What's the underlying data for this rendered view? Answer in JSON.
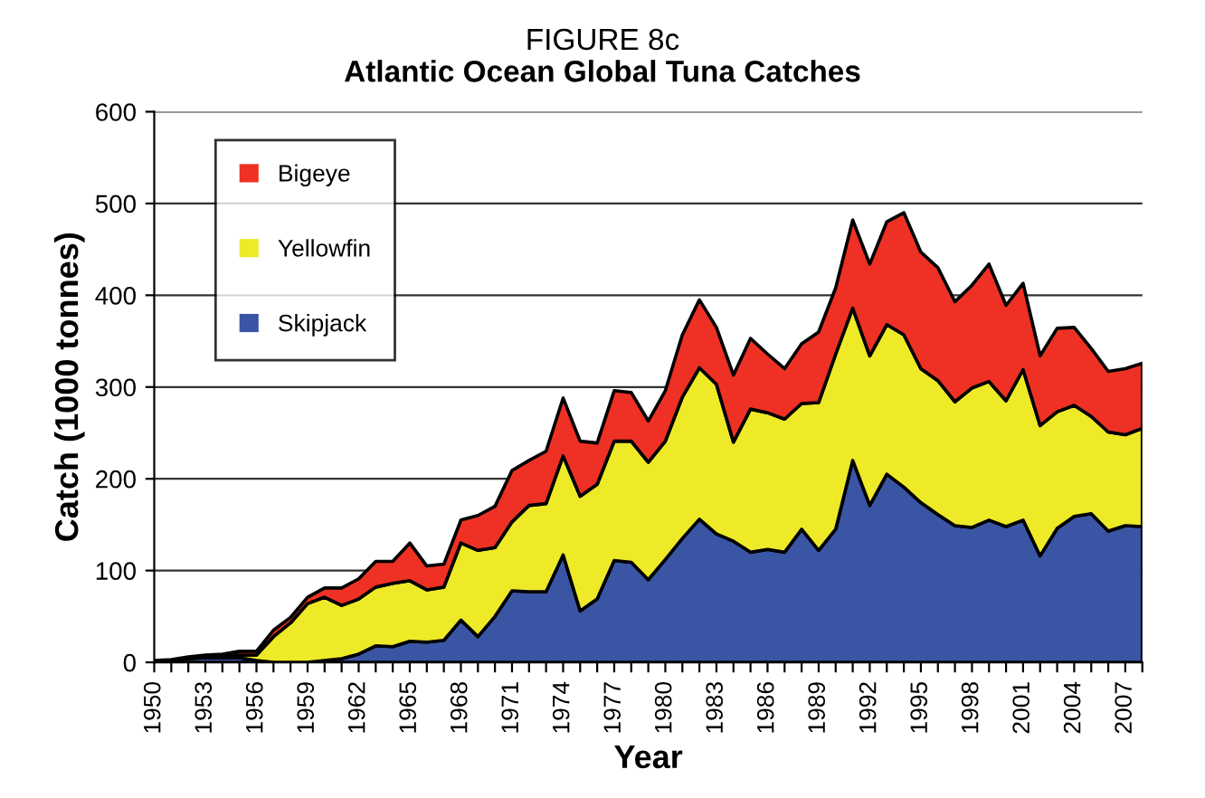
{
  "chart_data": {
    "type": "area",
    "stacked": true,
    "title": "FIGURE 8c",
    "subtitle": "Atlantic Ocean Global Tuna Catches",
    "xlabel": "Year",
    "ylabel": "Catch (1000 tonnes)",
    "categories": [
      "1950",
      null,
      null,
      "1953",
      null,
      null,
      "1956",
      null,
      null,
      "1959",
      null,
      null,
      "1962",
      null,
      null,
      "1965",
      null,
      null,
      "1968",
      null,
      null,
      "1971",
      null,
      null,
      "1974",
      null,
      null,
      "1977",
      null,
      null,
      "1980",
      null,
      null,
      "1983",
      null,
      null,
      "1986",
      null,
      null,
      "1989",
      null,
      null,
      "1992",
      null,
      null,
      "1995",
      null,
      null,
      "1998",
      null,
      null,
      "2001",
      null,
      null,
      "2004",
      null,
      null,
      "2007",
      null
    ],
    "ylim": [
      0,
      600
    ],
    "yticks": [
      0,
      100,
      200,
      300,
      400,
      500,
      600
    ],
    "grid": "y",
    "legend": "top left",
    "series": [
      {
        "name": "Skipjack",
        "color": "#3a55a4",
        "values": [
          1,
          2,
          4,
          5,
          5,
          5,
          2,
          0,
          0,
          0,
          2,
          4,
          9,
          18,
          17,
          23,
          22,
          24,
          46,
          28,
          50,
          78,
          77,
          77,
          117,
          56,
          69,
          111,
          109,
          90,
          112,
          135,
          156,
          140,
          132,
          120,
          123,
          120,
          145,
          122,
          145,
          220,
          171,
          205,
          191,
          174,
          161,
          149,
          147,
          155,
          148,
          155,
          116,
          146,
          159,
          162,
          143,
          149,
          148
        ]
      },
      {
        "name": "Yellowfin",
        "color": "#eeea28",
        "values": [
          0,
          0,
          1,
          2,
          2,
          3,
          6,
          28,
          43,
          64,
          69,
          58,
          60,
          64,
          69,
          66,
          57,
          58,
          84,
          94,
          75,
          75,
          94,
          96,
          108,
          125,
          125,
          130,
          132,
          128,
          129,
          154,
          165,
          163,
          108,
          156,
          149,
          145,
          137,
          161,
          191,
          166,
          163,
          163,
          166,
          146,
          146,
          135,
          152,
          151,
          137,
          164,
          142,
          127,
          121,
          106,
          108,
          99,
          107
        ]
      },
      {
        "name": "Bigeye",
        "color": "#ee3124",
        "values": [
          1,
          1,
          1,
          1,
          2,
          4,
          4,
          7,
          6,
          7,
          10,
          19,
          22,
          28,
          24,
          41,
          26,
          25,
          25,
          38,
          45,
          56,
          49,
          57,
          63,
          60,
          45,
          55,
          53,
          45,
          55,
          68,
          74,
          62,
          73,
          77,
          64,
          55,
          65,
          77,
          72,
          96,
          100,
          112,
          133,
          127,
          123,
          109,
          112,
          128,
          104,
          94,
          76,
          91,
          85,
          74,
          66,
          72,
          71
        ]
      }
    ]
  }
}
